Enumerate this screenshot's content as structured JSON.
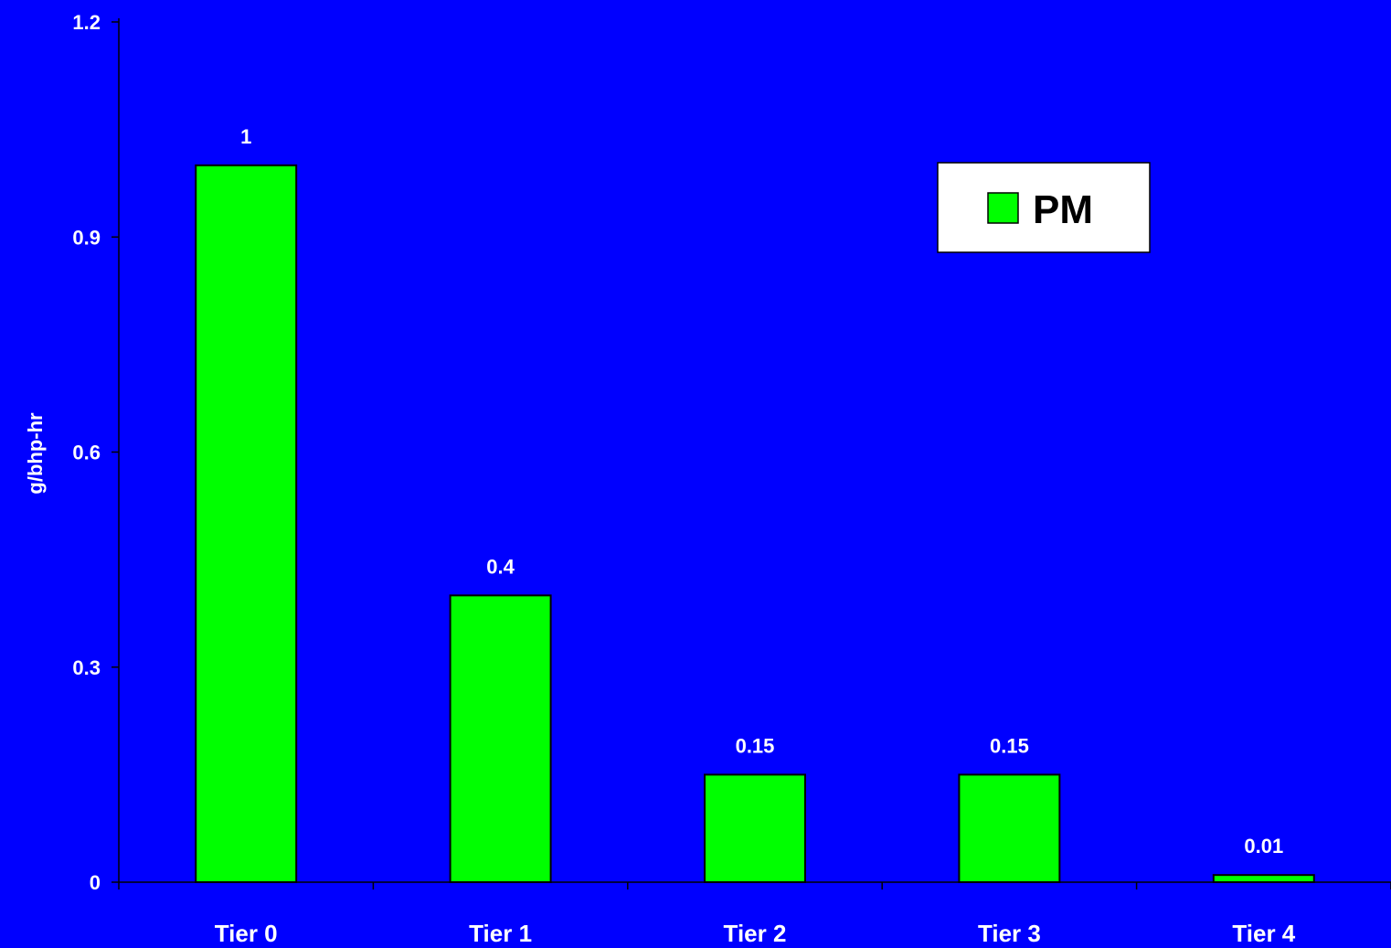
{
  "chart_data": {
    "type": "bar",
    "title": "",
    "xlabel": "",
    "ylabel": "g/bhp-hr",
    "categories": [
      "Tier 0",
      "Tier 1",
      "Tier 2",
      "Tier 3",
      "Tier 4"
    ],
    "series": [
      {
        "name": "PM",
        "values": [
          1,
          0.4,
          0.15,
          0.15,
          0.01
        ],
        "data_labels": [
          "1",
          "0.4",
          "0.15",
          "0.15",
          "0.01"
        ],
        "color": "#00FF00"
      }
    ],
    "ylim": [
      0,
      1.2
    ],
    "yticks": [
      0,
      0.3,
      0.6,
      0.9,
      1.2
    ],
    "ytick_labels": [
      "0",
      "0.3",
      "0.6",
      "0.9",
      "1.2"
    ],
    "grid": false,
    "legend": "top-right",
    "background_color": "#0000FF",
    "axis_color": "#000000",
    "text_color": "#FFFFFF"
  }
}
